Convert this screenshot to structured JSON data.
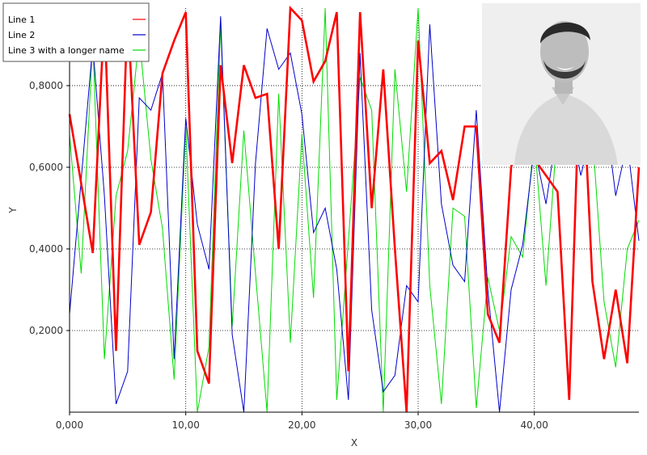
{
  "chart_data": {
    "type": "line",
    "title": "",
    "xlabel": "X",
    "ylabel": "Y",
    "xlim": [
      0,
      49
    ],
    "ylim": [
      0,
      0.99
    ],
    "grid": true,
    "legend_position": "top-left",
    "xticks": [
      0,
      10,
      20,
      30,
      40
    ],
    "xtick_labels": [
      "0,000",
      "10,00",
      "20,00",
      "30,00",
      "40,00"
    ],
    "yticks": [
      0.2,
      0.4,
      0.6,
      0.8
    ],
    "ytick_labels": [
      "0,2000",
      "0,4000",
      "0,6000",
      "0,8000"
    ],
    "series": [
      {
        "name": "Line 1",
        "color": "#ff0000",
        "values": [
          0.73,
          0.56,
          0.39,
          0.98,
          0.15,
          0.99,
          0.41,
          0.49,
          0.83,
          0.91,
          0.98,
          0.15,
          0.07,
          0.85,
          0.61,
          0.85,
          0.77,
          0.78,
          0.4,
          0.99,
          0.96,
          0.81,
          0.86,
          0.98,
          0.1,
          0.98,
          0.5,
          0.84,
          0.4,
          0.0,
          0.91,
          0.61,
          0.64,
          0.52,
          0.7,
          0.7,
          0.24,
          0.17,
          0.6,
          0.71,
          0.62,
          0.58,
          0.54,
          0.03,
          0.92,
          0.32,
          0.13,
          0.3,
          0.12,
          0.6
        ]
      },
      {
        "name": "Line 2",
        "color": "#0000cc",
        "values": [
          0.24,
          0.57,
          0.9,
          0.53,
          0.02,
          0.1,
          0.77,
          0.74,
          0.83,
          0.13,
          0.72,
          0.46,
          0.35,
          0.97,
          0.19,
          0.0,
          0.61,
          0.94,
          0.84,
          0.88,
          0.73,
          0.44,
          0.5,
          0.35,
          0.03,
          0.88,
          0.25,
          0.05,
          0.09,
          0.31,
          0.27,
          0.95,
          0.51,
          0.36,
          0.32,
          0.74,
          0.3,
          0.0,
          0.3,
          0.41,
          0.65,
          0.51,
          0.7,
          0.72,
          0.58,
          0.7,
          0.76,
          0.53,
          0.66,
          0.42
        ]
      },
      {
        "name": "Line 3 with a longer name",
        "color": "#00dd00",
        "values": [
          0.68,
          0.34,
          0.91,
          0.13,
          0.53,
          0.64,
          0.92,
          0.62,
          0.45,
          0.08,
          0.7,
          0.0,
          0.16,
          0.95,
          0.21,
          0.69,
          0.34,
          0.0,
          0.78,
          0.17,
          0.68,
          0.28,
          0.99,
          0.03,
          0.42,
          0.82,
          0.74,
          0.0,
          0.84,
          0.54,
          0.99,
          0.31,
          0.02,
          0.5,
          0.48,
          0.01,
          0.33,
          0.2,
          0.43,
          0.38,
          0.67,
          0.31,
          0.7,
          0.68,
          0.8,
          0.68,
          0.27,
          0.11,
          0.4,
          0.47
        ]
      }
    ]
  }
}
